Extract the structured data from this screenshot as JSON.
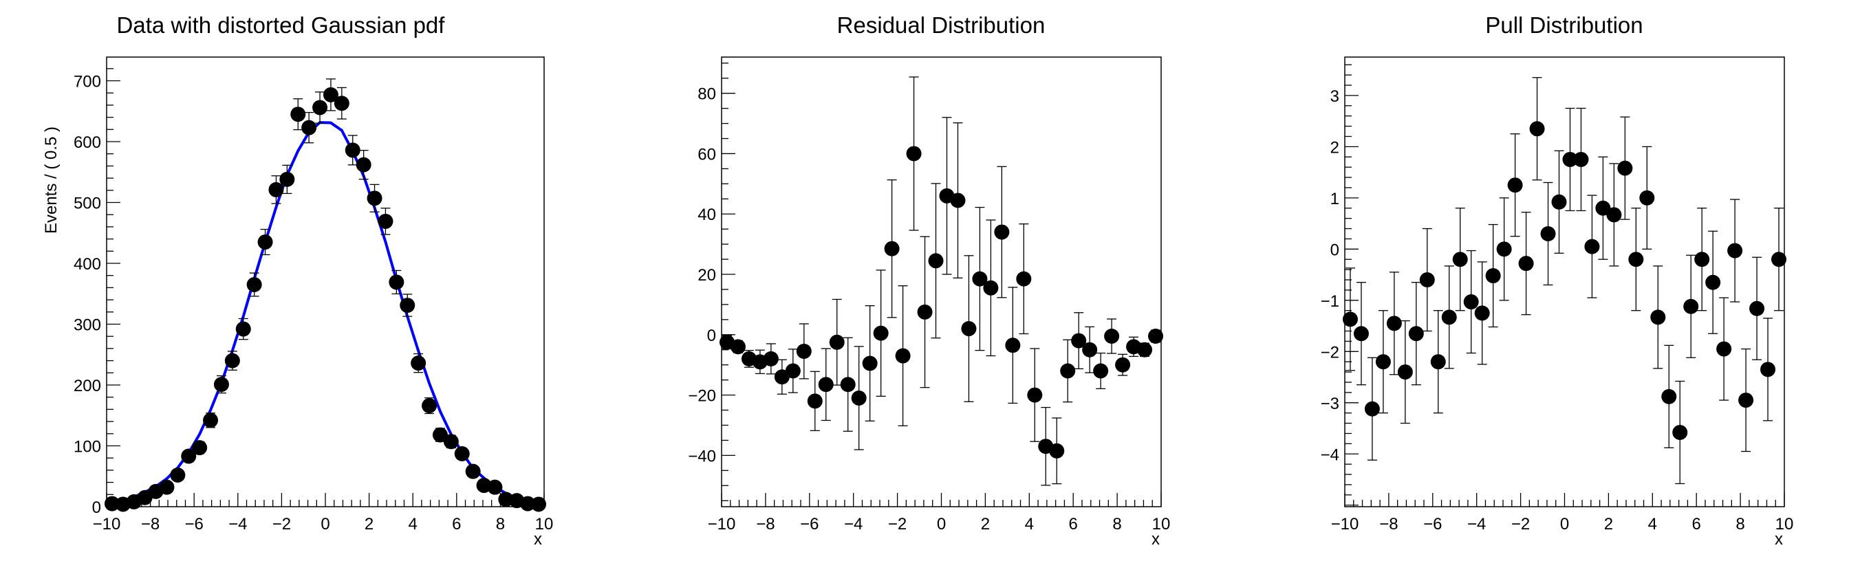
{
  "chart_data": [
    {
      "type": "scatter",
      "title": "Data with distorted Gaussian pdf",
      "xlabel": "x",
      "ylabel": "Events / ( 0.5 )",
      "xlim": [
        -10,
        10
      ],
      "ylim": [
        0,
        739
      ],
      "xticks": [
        -10,
        -8,
        -6,
        -4,
        -2,
        0,
        2,
        4,
        6,
        8,
        10
      ],
      "yticks": [
        0,
        100,
        200,
        300,
        400,
        500,
        600,
        700
      ],
      "x": [
        -9.75,
        -9.25,
        -8.75,
        -8.25,
        -7.75,
        -7.25,
        -6.75,
        -6.25,
        -5.75,
        -5.25,
        -4.75,
        -4.25,
        -3.75,
        -3.25,
        -2.75,
        -2.25,
        -1.75,
        -1.25,
        -0.75,
        -0.25,
        0.25,
        0.75,
        1.25,
        1.75,
        2.25,
        2.75,
        3.25,
        3.75,
        4.25,
        4.75,
        5.25,
        5.75,
        6.25,
        6.75,
        7.25,
        7.75,
        8.25,
        8.75,
        9.25,
        9.75
      ],
      "values": [
        5,
        4,
        8,
        15,
        25,
        32,
        52,
        83,
        97,
        142,
        201,
        240,
        292,
        365,
        435,
        521,
        538,
        645,
        623,
        656,
        677,
        663,
        586,
        562,
        507,
        469,
        369,
        331,
        236,
        166,
        118,
        107,
        87,
        58,
        35,
        32,
        12,
        10,
        5,
        4
      ],
      "error": "sqrt",
      "curve": {
        "color": "#0000ff",
        "values": [
          7.5,
          8,
          16,
          24,
          33,
          46,
          64,
          88.5,
          119,
          158.5,
          203.5,
          256.5,
          313,
          374.5,
          434.5,
          492.5,
          545,
          585,
          615.5,
          631.5,
          631,
          618.5,
          584,
          543.5,
          491.5,
          435,
          372.5,
          312.5,
          256,
          203,
          156.5,
          119,
          89,
          63,
          47,
          32.5,
          22,
          14,
          10,
          4.5
        ]
      },
      "grid": false,
      "ymajor": 100,
      "yminor": 20
    },
    {
      "type": "scatter",
      "title": "Residual Distribution",
      "xlabel": "x",
      "ylabel": "",
      "xlim": [
        -10,
        10
      ],
      "ylim": [
        -57,
        92
      ],
      "xticks": [
        -10,
        -8,
        -6,
        -4,
        -2,
        0,
        2,
        4,
        6,
        8,
        10
      ],
      "yticks": [
        -40,
        -20,
        0,
        20,
        40,
        60,
        80
      ],
      "x": [
        -9.75,
        -9.25,
        -8.75,
        -8.25,
        -7.75,
        -7.25,
        -6.75,
        -6.25,
        -5.75,
        -5.25,
        -4.75,
        -4.25,
        -3.75,
        -3.25,
        -2.75,
        -2.25,
        -1.75,
        -1.25,
        -0.75,
        -0.25,
        0.25,
        0.75,
        1.25,
        1.75,
        2.25,
        2.75,
        3.25,
        3.75,
        4.25,
        4.75,
        5.25,
        5.75,
        6.25,
        6.75,
        7.25,
        7.75,
        8.25,
        8.75,
        9.25,
        9.75
      ],
      "values": [
        -2.5,
        -4,
        -8,
        -9,
        -8,
        -14,
        -12,
        -5.5,
        -22,
        -16.5,
        -2.5,
        -16.5,
        -21,
        -9.5,
        0.5,
        28.5,
        -7,
        60,
        7.5,
        24.5,
        46,
        44.5,
        2,
        18.5,
        15.5,
        34,
        -3.5,
        18.5,
        -20,
        -37,
        -38.5,
        -12,
        -2,
        -5,
        -12,
        -0.5,
        -10,
        -4,
        -5,
        -0.5
      ],
      "errors": [
        2.2,
        2,
        2.8,
        3.9,
        5,
        5.7,
        7.2,
        9.1,
        9.8,
        11.9,
        14.2,
        15.5,
        17.1,
        19.1,
        20.9,
        22.8,
        23.2,
        25.4,
        25,
        25.6,
        26,
        25.7,
        24.2,
        23.7,
        22.5,
        21.7,
        19.2,
        18.2,
        15.4,
        12.9,
        10.9,
        10.3,
        9.3,
        7.6,
        5.9,
        5.7,
        3.5,
        3.2,
        2.2,
        2
      ],
      "grid": false,
      "ymajor": 20,
      "yminor": 5
    },
    {
      "type": "scatter",
      "title": "Pull Distribution",
      "xlabel": "x",
      "ylabel": "",
      "xlim": [
        -10,
        10
      ],
      "ylim": [
        -5.03,
        3.75
      ],
      "xticks": [
        -10,
        -8,
        -6,
        -4,
        -2,
        0,
        2,
        4,
        6,
        8,
        10
      ],
      "yticks": [
        -4,
        -3,
        -2,
        -1,
        0,
        1,
        2,
        3
      ],
      "x": [
        -9.75,
        -9.25,
        -8.75,
        -8.25,
        -7.75,
        -7.25,
        -6.75,
        -6.25,
        -5.75,
        -5.25,
        -4.75,
        -4.25,
        -3.75,
        -3.25,
        -2.75,
        -2.25,
        -1.75,
        -1.25,
        -0.75,
        -0.25,
        0.25,
        0.75,
        1.25,
        1.75,
        2.25,
        2.75,
        3.25,
        3.75,
        4.25,
        4.75,
        5.25,
        5.75,
        6.25,
        6.75,
        7.25,
        7.75,
        8.25,
        8.75,
        9.25,
        9.75
      ],
      "values": [
        -1.37,
        -1.65,
        -3.12,
        -2.2,
        -1.45,
        -2.4,
        -1.65,
        -0.6,
        -2.2,
        -1.33,
        -0.2,
        -1.03,
        -1.25,
        -0.52,
        0.0,
        1.25,
        -0.28,
        2.35,
        0.3,
        0.92,
        1.75,
        1.75,
        0.05,
        0.8,
        0.67,
        1.58,
        -0.2,
        1.0,
        -1.33,
        -2.88,
        -3.58,
        -1.12,
        -0.2,
        -0.65,
        -1.95,
        -0.03,
        -2.95,
        -1.16,
        -2.35,
        -0.2
      ],
      "error": "unit",
      "grid": false,
      "ymajor": 1,
      "yminor": 0.2
    }
  ]
}
